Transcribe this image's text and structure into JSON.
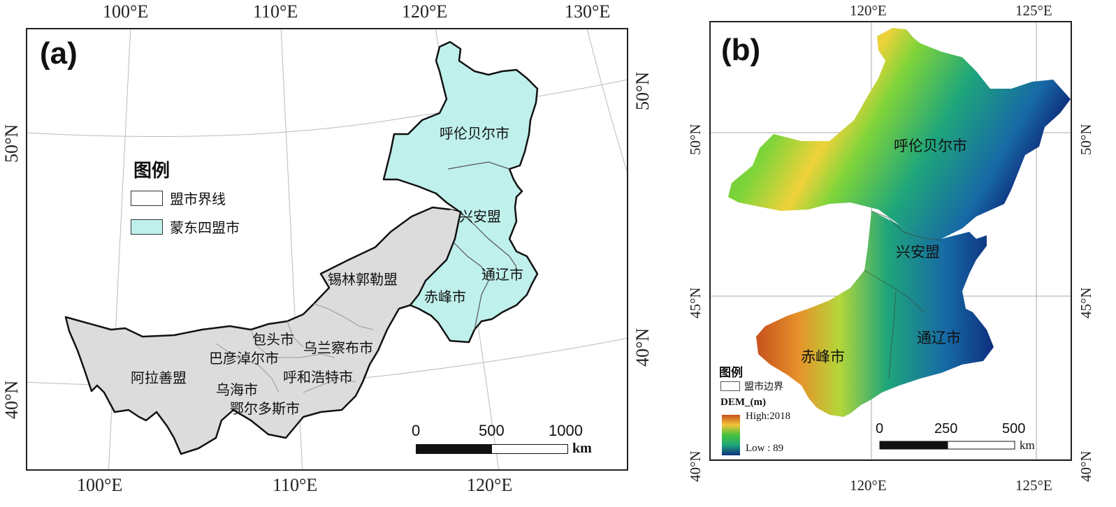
{
  "panel_a": {
    "letter": "(a)",
    "top_ticks": [
      "100°E",
      "110°E",
      "120°E",
      "130°E"
    ],
    "bottom_ticks": [
      "100°E",
      "110°E",
      "120°E"
    ],
    "left_ticks": [
      "50°N",
      "40°N"
    ],
    "right_ticks": [
      "50°N",
      "40°N"
    ],
    "legend": {
      "title": "图例",
      "items": [
        {
          "label": "盟市界线",
          "color": "#ffffff"
        },
        {
          "label": "蒙东四盟市",
          "color": "#bff0ec"
        }
      ]
    },
    "labels": {
      "hulunbuir": "呼伦贝尔市",
      "xingan": "兴安盟",
      "tongliao": "通辽市",
      "chifeng": "赤峰市",
      "xilingol": "锡林郭勒盟",
      "baotou": "包头市",
      "bayannur": "巴彦淖尔市",
      "ulanqab": "乌兰察布市",
      "alxa": "阿拉善盟",
      "hohhot": "呼和浩特市",
      "wuhai": "乌海市",
      "ordos": "鄂尔多斯市"
    },
    "scale": {
      "ticks": [
        "0",
        "500",
        "1000"
      ],
      "unit": "km"
    },
    "colors": {
      "east": "#bff0ec",
      "west": "#dcdcdc",
      "border": "#111111"
    }
  },
  "panel_b": {
    "letter": "(b)",
    "top_ticks": [
      "120°E",
      "125°E"
    ],
    "bottom_ticks": [
      "120°E",
      "125°E"
    ],
    "left_ticks": [
      "50°N",
      "45°N",
      "40°N"
    ],
    "right_ticks": [
      "50°N",
      "45°N",
      "40°N"
    ],
    "labels": {
      "hulunbuir": "呼伦贝尔市",
      "xingan": "兴安盟",
      "tongliao": "通辽市",
      "chifeng": "赤峰市"
    },
    "legend": {
      "title": "图例",
      "boundary": "盟市边界",
      "dem_title": "DEM_(m)",
      "high": "High:2018",
      "low": "Low : 89"
    },
    "scale": {
      "ticks": [
        "0",
        "250",
        "500"
      ],
      "unit": "km"
    },
    "dem_colors": [
      "#b5451b",
      "#e07a1f",
      "#f3c43a",
      "#bfe13a",
      "#44c23c",
      "#1fa67a",
      "#1769a6",
      "#0e2f7e"
    ]
  }
}
